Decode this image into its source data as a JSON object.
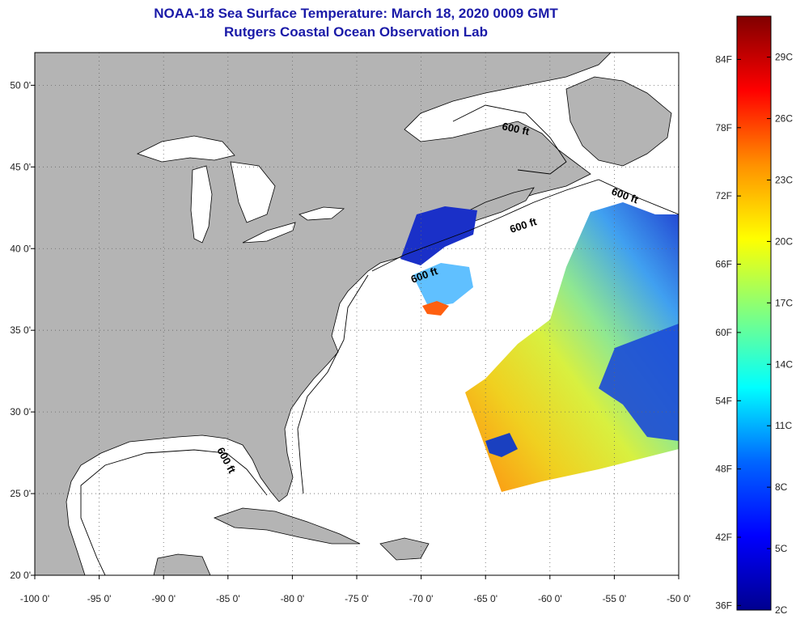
{
  "title": {
    "line1": "NOAA-18 Sea Surface Temperature:  March 18, 2020 0009 GMT",
    "line2": "Rutgers Coastal Ocean Observation Lab"
  },
  "map": {
    "lon_range": [
      -100,
      -50
    ],
    "lat_range": [
      20,
      52
    ],
    "lon_ticks": [
      {
        "value": -100,
        "label": "-100 0'"
      },
      {
        "value": -95,
        "label": "-95 0'"
      },
      {
        "value": -90,
        "label": "-90 0'"
      },
      {
        "value": -85,
        "label": "-85 0'"
      },
      {
        "value": -80,
        "label": "-80 0'"
      },
      {
        "value": -75,
        "label": "-75 0'"
      },
      {
        "value": -70,
        "label": "-70 0'"
      },
      {
        "value": -65,
        "label": "-65 0'"
      },
      {
        "value": -60,
        "label": "-60 0'"
      },
      {
        "value": -55,
        "label": "-55 0'"
      },
      {
        "value": -50,
        "label": "-50 0'"
      }
    ],
    "lat_ticks": [
      {
        "value": 20,
        "label": "20 0'"
      },
      {
        "value": 25,
        "label": "25 0'"
      },
      {
        "value": 30,
        "label": "30 0'"
      },
      {
        "value": 35,
        "label": "35 0'"
      },
      {
        "value": 40,
        "label": "40 0'"
      },
      {
        "value": 45,
        "label": "45 0'"
      },
      {
        "value": 50,
        "label": "50 0'"
      }
    ],
    "contour_labels": [
      "600 ft",
      "600 ft",
      "600 ft",
      "600 ft",
      "600 ft"
    ],
    "land_color": "#b4b4b4",
    "water_color": "#ffffff"
  },
  "colorbar": {
    "fahrenheit": [
      {
        "value": 36,
        "label": "36F"
      },
      {
        "value": 42,
        "label": "42F"
      },
      {
        "value": 48,
        "label": "48F"
      },
      {
        "value": 54,
        "label": "54F"
      },
      {
        "value": 60,
        "label": "60F"
      },
      {
        "value": 66,
        "label": "66F"
      },
      {
        "value": 72,
        "label": "72F"
      },
      {
        "value": 78,
        "label": "78F"
      },
      {
        "value": 84,
        "label": "84F"
      }
    ],
    "celsius": [
      {
        "value": 2,
        "label": "2C"
      },
      {
        "value": 5,
        "label": "5C"
      },
      {
        "value": 8,
        "label": "8C"
      },
      {
        "value": 11,
        "label": "11C"
      },
      {
        "value": 14,
        "label": "14C"
      },
      {
        "value": 17,
        "label": "17C"
      },
      {
        "value": 20,
        "label": "20C"
      },
      {
        "value": 23,
        "label": "23C"
      },
      {
        "value": 26,
        "label": "26C"
      },
      {
        "value": 29,
        "label": "29C"
      }
    ],
    "range_c": [
      2,
      31
    ],
    "colors": [
      "#00008f",
      "#0000ff",
      "#0080ff",
      "#00ffff",
      "#80ff80",
      "#ffff00",
      "#ff8000",
      "#ff0000",
      "#800000"
    ]
  }
}
